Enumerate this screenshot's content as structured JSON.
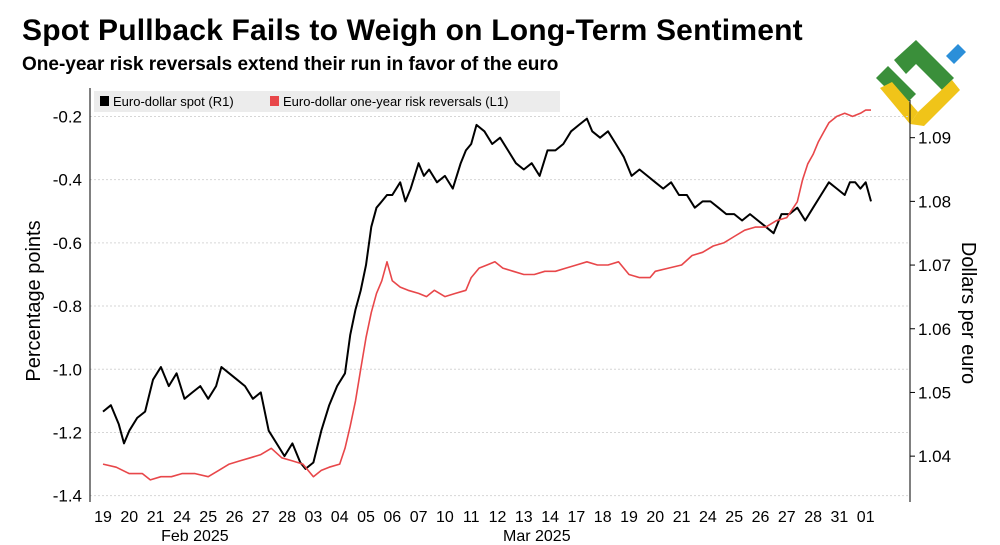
{
  "title": "Spot Pullback Fails to Weigh on Long-Term Sentiment",
  "subtitle": "One-year risk reversals extend their run in favor of the euro",
  "logo": {
    "icon": "brand-logo-icon",
    "colors": [
      "#3a8f3a",
      "#f0c419",
      "#2b8fd9"
    ]
  },
  "chart_data": {
    "type": "line",
    "ylabel_left": "Percentage points",
    "ylabel_right": "Dollars per euro",
    "left_axis": {
      "ticks": [
        -0.2,
        -0.4,
        -0.6,
        -0.8,
        -1.0,
        -1.2,
        -1.4
      ],
      "tick_labels": [
        "-0.2",
        "-0.4",
        "-0.6",
        "-0.8",
        "-1.0",
        "-1.2",
        "-1.4"
      ],
      "range": [
        -1.42,
        -0.11
      ]
    },
    "right_axis": {
      "ticks": [
        1.09,
        1.08,
        1.07,
        1.06,
        1.05,
        1.04
      ],
      "tick_labels": [
        "1.09",
        "1.08",
        "1.07",
        "1.06",
        "1.05",
        "1.04"
      ],
      "range": [
        1.0328,
        1.0978
      ]
    },
    "x_tick_labels": [
      "19",
      "20",
      "21",
      "24",
      "25",
      "26",
      "27",
      "28",
      "03",
      "04",
      "05",
      "06",
      "07",
      "10",
      "11",
      "12",
      "13",
      "14",
      "17",
      "18",
      "19",
      "20",
      "21",
      "24",
      "25",
      "26",
      "27",
      "28",
      "31",
      "01"
    ],
    "month_labels": [
      {
        "label": "Feb 2025",
        "at_index": 3
      },
      {
        "label": "Mar 2025",
        "at_index": 16
      }
    ],
    "grid": "horizontal",
    "legend_placement": "top-left",
    "series": [
      {
        "name": "Euro-dollar spot (R1)",
        "color": "#000000",
        "axis": "right",
        "points": [
          [
            0,
            1.047
          ],
          [
            0.3,
            1.048
          ],
          [
            0.6,
            1.045
          ],
          [
            0.8,
            1.042
          ],
          [
            1.0,
            1.044
          ],
          [
            1.3,
            1.046
          ],
          [
            1.6,
            1.047
          ],
          [
            1.9,
            1.052
          ],
          [
            2.2,
            1.054
          ],
          [
            2.5,
            1.051
          ],
          [
            2.8,
            1.053
          ],
          [
            3.1,
            1.049
          ],
          [
            3.4,
            1.05
          ],
          [
            3.7,
            1.051
          ],
          [
            4.0,
            1.049
          ],
          [
            4.3,
            1.051
          ],
          [
            4.5,
            1.054
          ],
          [
            4.8,
            1.053
          ],
          [
            5.1,
            1.052
          ],
          [
            5.4,
            1.051
          ],
          [
            5.7,
            1.049
          ],
          [
            6.0,
            1.05
          ],
          [
            6.3,
            1.044
          ],
          [
            6.6,
            1.042
          ],
          [
            6.9,
            1.04
          ],
          [
            7.2,
            1.042
          ],
          [
            7.5,
            1.039
          ],
          [
            7.7,
            1.038
          ],
          [
            8.0,
            1.039
          ],
          [
            8.3,
            1.044
          ],
          [
            8.6,
            1.048
          ],
          [
            8.9,
            1.051
          ],
          [
            9.2,
            1.053
          ],
          [
            9.4,
            1.059
          ],
          [
            9.6,
            1.063
          ],
          [
            9.8,
            1.066
          ],
          [
            10.0,
            1.07
          ],
          [
            10.2,
            1.076
          ],
          [
            10.4,
            1.079
          ],
          [
            10.6,
            1.08
          ],
          [
            10.8,
            1.081
          ],
          [
            11.0,
            1.081
          ],
          [
            11.3,
            1.083
          ],
          [
            11.5,
            1.08
          ],
          [
            11.7,
            1.082
          ],
          [
            12.0,
            1.086
          ],
          [
            12.2,
            1.084
          ],
          [
            12.4,
            1.085
          ],
          [
            12.7,
            1.083
          ],
          [
            13.0,
            1.084
          ],
          [
            13.3,
            1.082
          ],
          [
            13.6,
            1.086
          ],
          [
            13.8,
            1.088
          ],
          [
            14.0,
            1.089
          ],
          [
            14.2,
            1.092
          ],
          [
            14.5,
            1.091
          ],
          [
            14.8,
            1.089
          ],
          [
            15.1,
            1.09
          ],
          [
            15.4,
            1.088
          ],
          [
            15.7,
            1.086
          ],
          [
            16.0,
            1.085
          ],
          [
            16.3,
            1.086
          ],
          [
            16.6,
            1.084
          ],
          [
            16.9,
            1.088
          ],
          [
            17.2,
            1.088
          ],
          [
            17.5,
            1.089
          ],
          [
            17.8,
            1.091
          ],
          [
            18.1,
            1.092
          ],
          [
            18.4,
            1.093
          ],
          [
            18.6,
            1.091
          ],
          [
            18.9,
            1.09
          ],
          [
            19.2,
            1.091
          ],
          [
            19.5,
            1.089
          ],
          [
            19.8,
            1.087
          ],
          [
            20.1,
            1.084
          ],
          [
            20.4,
            1.085
          ],
          [
            20.7,
            1.084
          ],
          [
            21.0,
            1.083
          ],
          [
            21.3,
            1.082
          ],
          [
            21.6,
            1.083
          ],
          [
            21.9,
            1.081
          ],
          [
            22.2,
            1.081
          ],
          [
            22.5,
            1.079
          ],
          [
            22.8,
            1.08
          ],
          [
            23.1,
            1.08
          ],
          [
            23.4,
            1.079
          ],
          [
            23.7,
            1.078
          ],
          [
            24.0,
            1.078
          ],
          [
            24.3,
            1.077
          ],
          [
            24.6,
            1.078
          ],
          [
            24.9,
            1.077
          ],
          [
            25.2,
            1.076
          ],
          [
            25.5,
            1.075
          ],
          [
            25.8,
            1.078
          ],
          [
            26.1,
            1.078
          ],
          [
            26.4,
            1.079
          ],
          [
            26.7,
            1.077
          ],
          [
            27.0,
            1.079
          ],
          [
            27.3,
            1.081
          ],
          [
            27.6,
            1.083
          ],
          [
            27.9,
            1.082
          ],
          [
            28.2,
            1.081
          ],
          [
            28.4,
            1.083
          ],
          [
            28.6,
            1.083
          ],
          [
            28.8,
            1.082
          ],
          [
            29.0,
            1.083
          ],
          [
            29.2,
            1.08
          ]
        ]
      },
      {
        "name": "Euro-dollar one-year risk reversals (L1)",
        "color": "#e8474a",
        "axis": "left",
        "points": [
          [
            0,
            -1.3
          ],
          [
            0.5,
            -1.31
          ],
          [
            1.0,
            -1.33
          ],
          [
            1.5,
            -1.33
          ],
          [
            1.8,
            -1.35
          ],
          [
            2.2,
            -1.34
          ],
          [
            2.6,
            -1.34
          ],
          [
            3.0,
            -1.33
          ],
          [
            3.5,
            -1.33
          ],
          [
            4.0,
            -1.34
          ],
          [
            4.4,
            -1.32
          ],
          [
            4.8,
            -1.3
          ],
          [
            5.2,
            -1.29
          ],
          [
            5.6,
            -1.28
          ],
          [
            6.0,
            -1.27
          ],
          [
            6.4,
            -1.25
          ],
          [
            6.8,
            -1.28
          ],
          [
            7.2,
            -1.29
          ],
          [
            7.6,
            -1.3
          ],
          [
            8.0,
            -1.34
          ],
          [
            8.3,
            -1.32
          ],
          [
            8.6,
            -1.31
          ],
          [
            9.0,
            -1.3
          ],
          [
            9.2,
            -1.25
          ],
          [
            9.4,
            -1.18
          ],
          [
            9.6,
            -1.1
          ],
          [
            9.8,
            -1.0
          ],
          [
            10.0,
            -0.9
          ],
          [
            10.2,
            -0.82
          ],
          [
            10.4,
            -0.76
          ],
          [
            10.6,
            -0.72
          ],
          [
            10.8,
            -0.66
          ],
          [
            11.0,
            -0.72
          ],
          [
            11.3,
            -0.74
          ],
          [
            11.6,
            -0.75
          ],
          [
            12.0,
            -0.76
          ],
          [
            12.3,
            -0.77
          ],
          [
            12.6,
            -0.75
          ],
          [
            13.0,
            -0.77
          ],
          [
            13.4,
            -0.76
          ],
          [
            13.8,
            -0.75
          ],
          [
            14.0,
            -0.71
          ],
          [
            14.3,
            -0.68
          ],
          [
            14.6,
            -0.67
          ],
          [
            14.9,
            -0.66
          ],
          [
            15.2,
            -0.68
          ],
          [
            15.6,
            -0.69
          ],
          [
            16.0,
            -0.7
          ],
          [
            16.4,
            -0.7
          ],
          [
            16.8,
            -0.69
          ],
          [
            17.2,
            -0.69
          ],
          [
            17.6,
            -0.68
          ],
          [
            18.0,
            -0.67
          ],
          [
            18.4,
            -0.66
          ],
          [
            18.8,
            -0.67
          ],
          [
            19.2,
            -0.67
          ],
          [
            19.6,
            -0.66
          ],
          [
            20.0,
            -0.7
          ],
          [
            20.4,
            -0.71
          ],
          [
            20.8,
            -0.71
          ],
          [
            21.0,
            -0.69
          ],
          [
            21.5,
            -0.68
          ],
          [
            22.0,
            -0.67
          ],
          [
            22.4,
            -0.64
          ],
          [
            22.8,
            -0.63
          ],
          [
            23.2,
            -0.61
          ],
          [
            23.6,
            -0.6
          ],
          [
            24.0,
            -0.58
          ],
          [
            24.4,
            -0.56
          ],
          [
            24.8,
            -0.55
          ],
          [
            25.2,
            -0.55
          ],
          [
            25.6,
            -0.53
          ],
          [
            26.0,
            -0.52
          ],
          [
            26.4,
            -0.47
          ],
          [
            26.6,
            -0.4
          ],
          [
            26.8,
            -0.35
          ],
          [
            27.0,
            -0.32
          ],
          [
            27.2,
            -0.28
          ],
          [
            27.4,
            -0.25
          ],
          [
            27.6,
            -0.22
          ],
          [
            27.9,
            -0.2
          ],
          [
            28.2,
            -0.19
          ],
          [
            28.5,
            -0.2
          ],
          [
            28.8,
            -0.19
          ],
          [
            29.0,
            -0.18
          ],
          [
            29.2,
            -0.18
          ]
        ]
      }
    ]
  }
}
